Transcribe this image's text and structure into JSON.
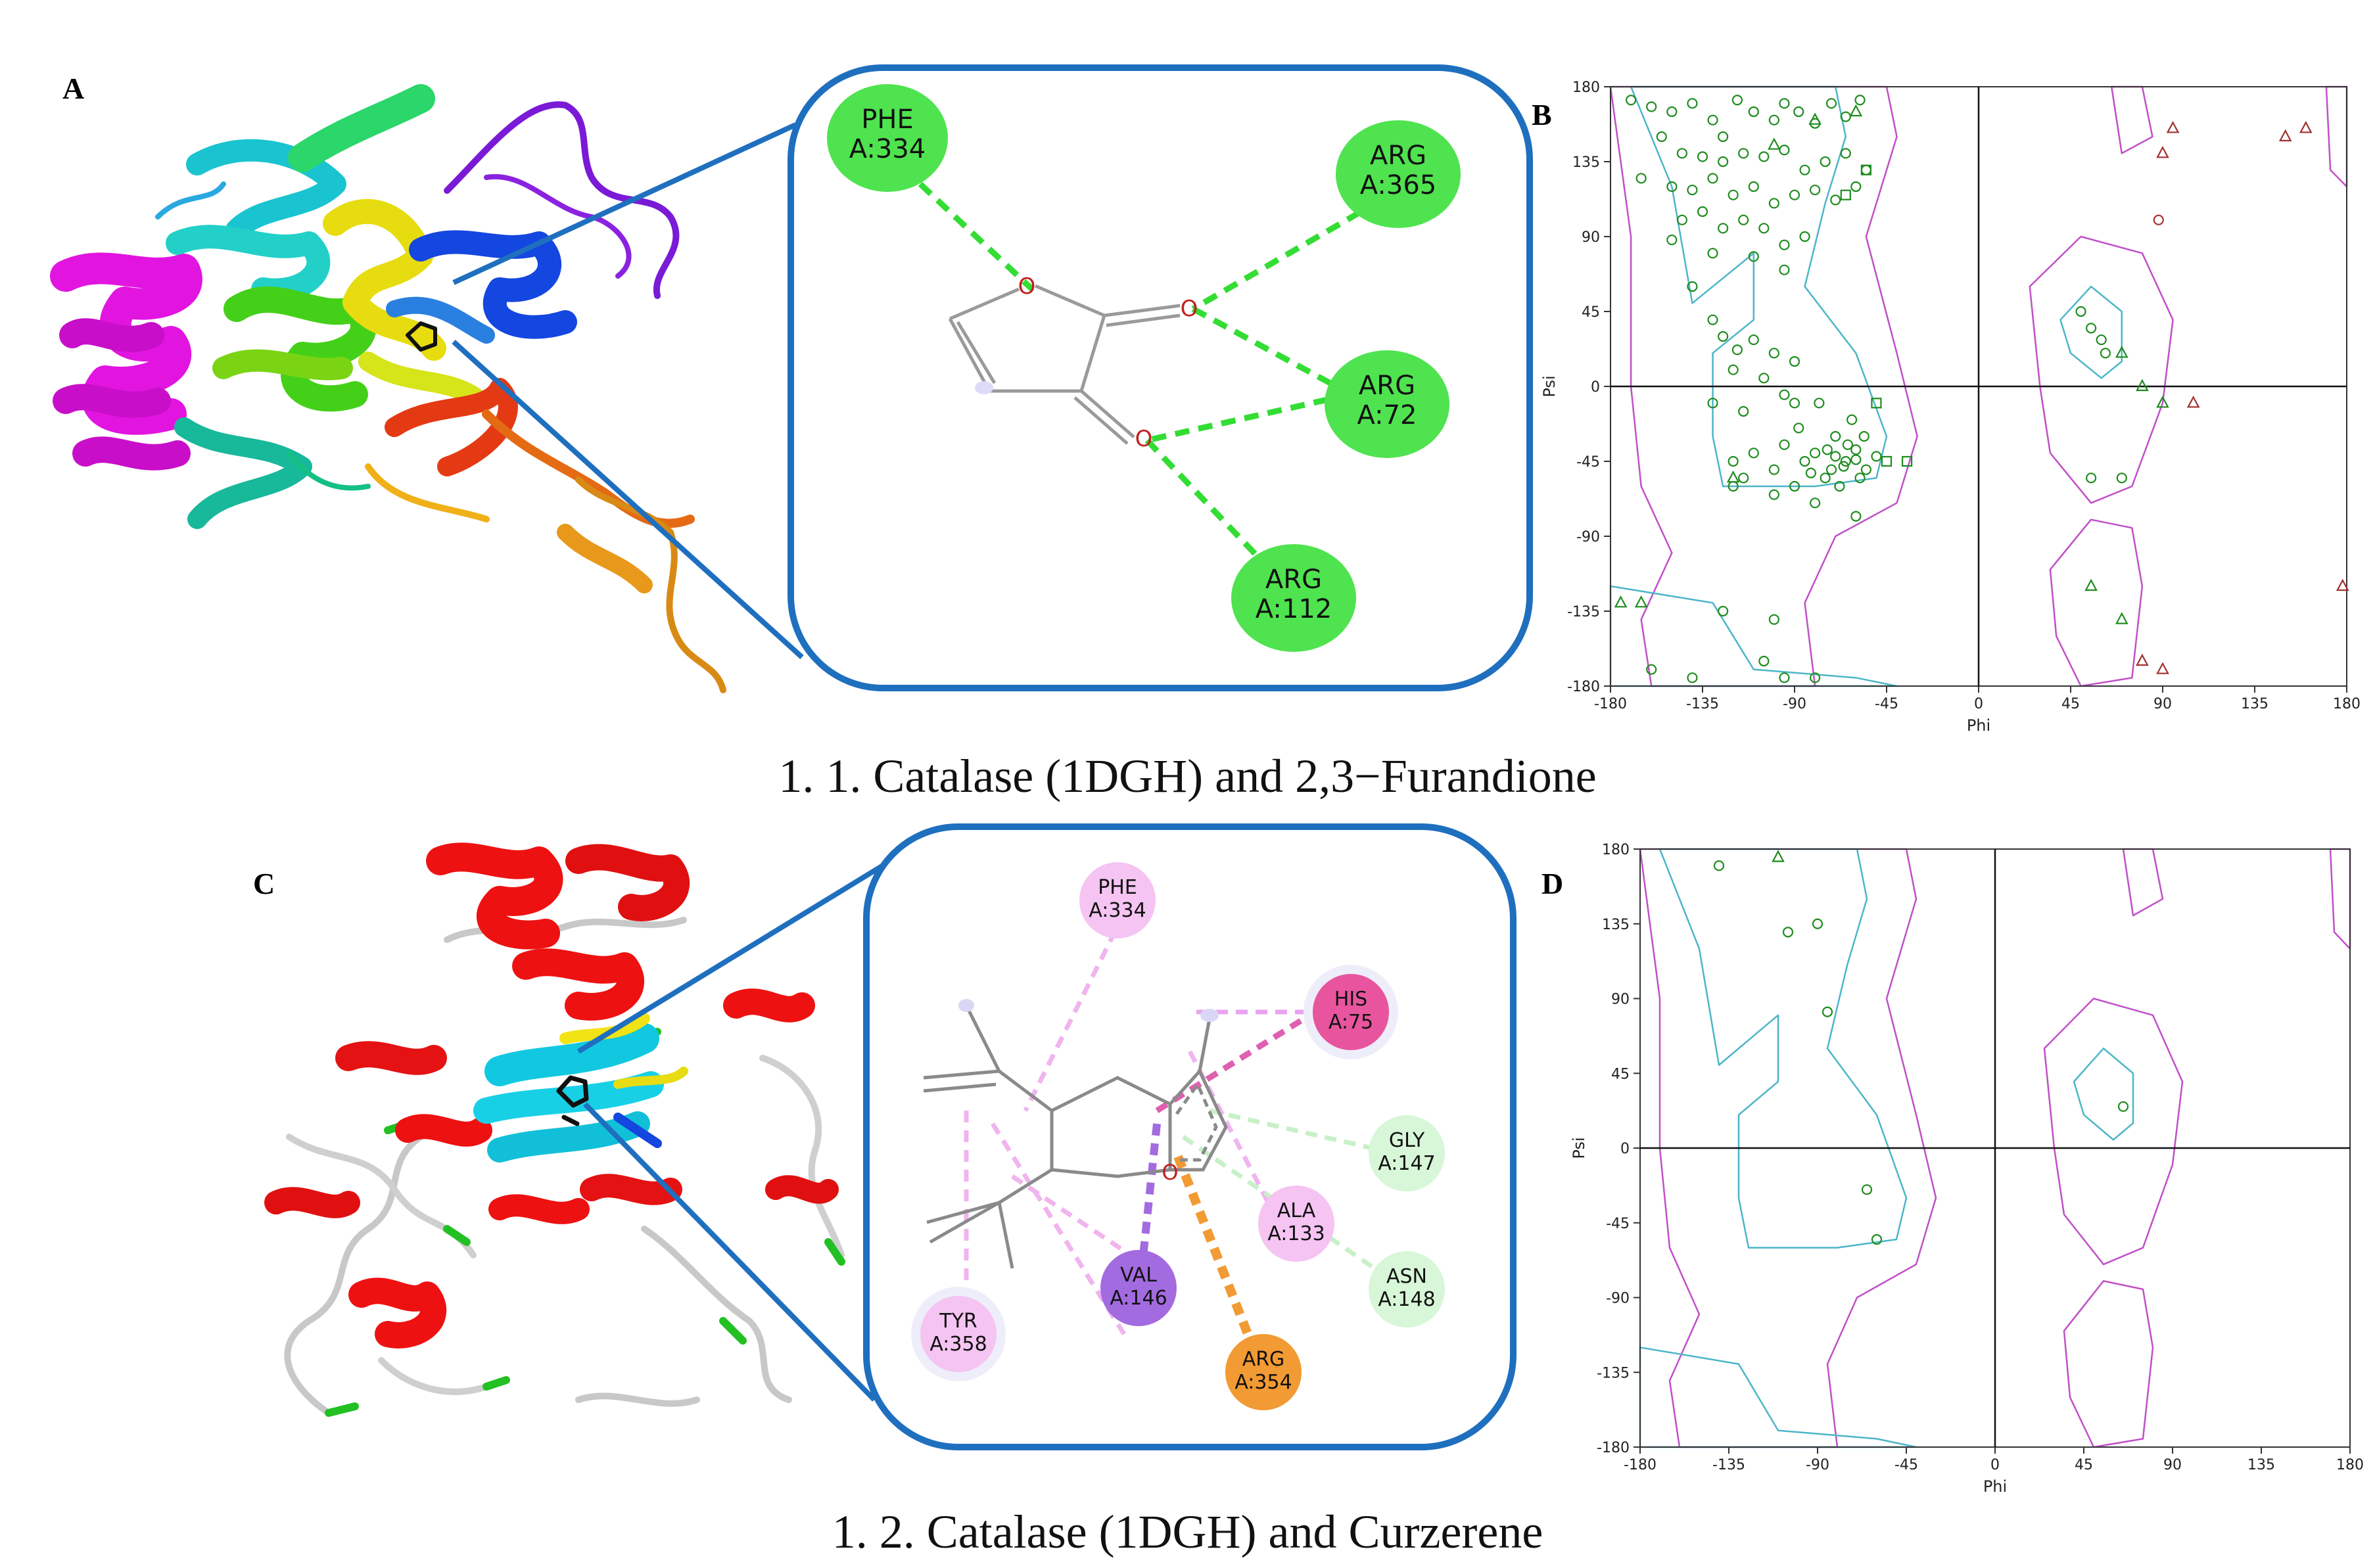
{
  "figure": {
    "row1": {
      "panel_a_letter": "A",
      "panel_b_letter": "B",
      "caption": "1. 1. Catalase (1DGH) and 2,3−Furandione",
      "residues": [
        {
          "name": "PHE",
          "id": "A:334",
          "type": "h-bond"
        },
        {
          "name": "ARG",
          "id": "A:365",
          "type": "h-bond"
        },
        {
          "name": "ARG",
          "id": "A:72",
          "type": "h-bond"
        },
        {
          "name": "ARG",
          "id": "A:112",
          "type": "h-bond"
        }
      ],
      "ligand_atoms": [
        "O",
        "O",
        "O"
      ]
    },
    "row2": {
      "panel_c_letter": "C",
      "panel_d_letter": "D",
      "caption": "1. 2. Catalase (1DGH) and Curzerene",
      "residues": [
        {
          "name": "PHE",
          "id": "A:334",
          "type": "pi-alkyl"
        },
        {
          "name": "HIS",
          "id": "A:75",
          "type": "pi-pi"
        },
        {
          "name": "GLY",
          "id": "A:147",
          "type": "carbon-h"
        },
        {
          "name": "ALA",
          "id": "A:133",
          "type": "pi-alkyl"
        },
        {
          "name": "ASN",
          "id": "A:148",
          "type": "carbon-h"
        },
        {
          "name": "VAL",
          "id": "A:146",
          "type": "pi-sigma"
        },
        {
          "name": "ARG",
          "id": "A:354",
          "type": "pi-cation"
        },
        {
          "name": "TYR",
          "id": "A:358",
          "type": "pi-alkyl"
        }
      ],
      "ligand_atoms": [
        "O"
      ]
    }
  },
  "colors": {
    "hbond_green": "#33dd33",
    "pi_alkyl": "#f5c4f2",
    "pi_pi": "#e8559e",
    "carbon_h": "#d8f6d8",
    "pi_sigma": "#a36be0",
    "pi_cation": "#f29a33",
    "panel_border": "#1f6fbf",
    "plot_green": "#1e8c1e",
    "plot_red": "#a03030",
    "contour_cyan": "#4cb6c8",
    "contour_magenta": "#c050c8"
  },
  "chart_data": [
    {
      "type": "scatter",
      "panel": "B",
      "title": "",
      "xlabel": "Phi",
      "ylabel": "Psi",
      "xlim": [
        -180,
        180
      ],
      "ylim": [
        -180,
        180
      ],
      "xticks": [
        -180,
        -135,
        -90,
        -45,
        0,
        45,
        90,
        135,
        180
      ],
      "yticks": [
        180,
        135,
        90,
        45,
        0,
        -45,
        -90,
        -135,
        -180
      ],
      "grid": false,
      "series": [
        {
          "marker": "circle",
          "color": "#1e8c1e",
          "points": [
            [
              -170,
              172
            ],
            [
              -160,
              168
            ],
            [
              -150,
              165
            ],
            [
              -140,
              170
            ],
            [
              -130,
              160
            ],
            [
              -125,
              150
            ],
            [
              -118,
              172
            ],
            [
              -110,
              165
            ],
            [
              -100,
              160
            ],
            [
              -95,
              170
            ],
            [
              -88,
              165
            ],
            [
              -80,
              158
            ],
            [
              -72,
              170
            ],
            [
              -65,
              162
            ],
            [
              -58,
              172
            ],
            [
              -155,
              150
            ],
            [
              -145,
              140
            ],
            [
              -135,
              138
            ],
            [
              -125,
              135
            ],
            [
              -115,
              140
            ],
            [
              -105,
              138
            ],
            [
              -95,
              142
            ],
            [
              -85,
              130
            ],
            [
              -75,
              135
            ],
            [
              -65,
              140
            ],
            [
              -55,
              130
            ],
            [
              -165,
              125
            ],
            [
              -150,
              120
            ],
            [
              -140,
              118
            ],
            [
              -130,
              125
            ],
            [
              -120,
              115
            ],
            [
              -110,
              120
            ],
            [
              -100,
              110
            ],
            [
              -90,
              115
            ],
            [
              -80,
              118
            ],
            [
              -70,
              112
            ],
            [
              -60,
              120
            ],
            [
              -145,
              100
            ],
            [
              -135,
              105
            ],
            [
              -125,
              95
            ],
            [
              -115,
              100
            ],
            [
              -105,
              95
            ],
            [
              -95,
              85
            ],
            [
              -85,
              90
            ],
            [
              -150,
              88
            ],
            [
              -130,
              80
            ],
            [
              -110,
              78
            ],
            [
              -95,
              70
            ],
            [
              -140,
              60
            ],
            [
              -130,
              40
            ],
            [
              -125,
              30
            ],
            [
              -118,
              22
            ],
            [
              -110,
              28
            ],
            [
              -100,
              20
            ],
            [
              -90,
              15
            ],
            [
              -120,
              10
            ],
            [
              -105,
              5
            ],
            [
              -95,
              -5
            ],
            [
              -130,
              -10
            ],
            [
              -115,
              -15
            ],
            [
              -120,
              -45
            ],
            [
              -115,
              -55
            ],
            [
              -110,
              -40
            ],
            [
              -100,
              -50
            ],
            [
              -95,
              -35
            ],
            [
              -90,
              -60
            ],
            [
              -85,
              -45
            ],
            [
              -80,
              -40
            ],
            [
              -75,
              -55
            ],
            [
              -70,
              -30
            ],
            [
              -65,
              -45
            ],
            [
              -60,
              -38
            ],
            [
              -55,
              -50
            ],
            [
              -50,
              -42
            ],
            [
              -62,
              -20
            ],
            [
              -78,
              -10
            ],
            [
              -88,
              -25
            ],
            [
              -72,
              -50
            ],
            [
              -68,
              -60
            ],
            [
              -58,
              -55
            ],
            [
              -64,
              -35
            ],
            [
              -70,
              -42
            ],
            [
              -66,
              -48
            ],
            [
              -60,
              -44
            ],
            [
              -74,
              -38
            ],
            [
              -82,
              -52
            ],
            [
              -56,
              -30
            ],
            [
              -90,
              -10
            ],
            [
              -120,
              -60
            ],
            [
              -100,
              -65
            ],
            [
              -80,
              -70
            ],
            [
              -60,
              -78
            ],
            [
              -125,
              -135
            ],
            [
              -100,
              -140
            ],
            [
              -95,
              -175
            ],
            [
              -140,
              -175
            ],
            [
              -160,
              -170
            ],
            [
              -105,
              -165
            ],
            [
              -80,
              -175
            ],
            [
              50,
              45
            ],
            [
              55,
              35
            ],
            [
              60,
              28
            ],
            [
              62,
              20
            ],
            [
              55,
              -55
            ],
            [
              70,
              -55
            ]
          ]
        },
        {
          "marker": "square",
          "color": "#1e8c1e",
          "points": [
            [
              -55,
              130
            ],
            [
              -65,
              115
            ],
            [
              -50,
              -10
            ],
            [
              -45,
              -45
            ],
            [
              -35,
              -45
            ]
          ]
        },
        {
          "marker": "triangle",
          "color": "#1e8c1e",
          "points": [
            [
              -100,
              145
            ],
            [
              -80,
              160
            ],
            [
              -60,
              165
            ],
            [
              -175,
              -130
            ],
            [
              -165,
              -130
            ],
            [
              -120,
              -55
            ],
            [
              70,
              20
            ],
            [
              80,
              0
            ],
            [
              90,
              -10
            ],
            [
              55,
              -120
            ],
            [
              70,
              -140
            ]
          ]
        },
        {
          "marker": "triangle",
          "color": "#a03030",
          "points": [
            [
              90,
              140
            ],
            [
              95,
              155
            ],
            [
              105,
              -10
            ],
            [
              150,
              150
            ],
            [
              160,
              155
            ],
            [
              178,
              -120
            ],
            [
              80,
              -165
            ],
            [
              90,
              -170
            ]
          ]
        },
        {
          "marker": "circle",
          "color": "#a03030",
          "points": [
            [
              88,
              100
            ]
          ]
        }
      ]
    },
    {
      "type": "scatter",
      "panel": "D",
      "title": "",
      "xlabel": "Phi",
      "ylabel": "Psi",
      "xlim": [
        -180,
        180
      ],
      "ylim": [
        -180,
        180
      ],
      "xticks": [
        -180,
        -135,
        -90,
        -45,
        0,
        45,
        90,
        135,
        180
      ],
      "yticks": [
        180,
        135,
        90,
        45,
        0,
        -45,
        -90,
        -135,
        -180
      ],
      "grid": false,
      "series": [
        {
          "marker": "circle",
          "color": "#1e8c1e",
          "points": [
            [
              -140,
              170
            ],
            [
              -105,
              130
            ],
            [
              -90,
              135
            ],
            [
              -85,
              82
            ],
            [
              -65,
              -25
            ],
            [
              -60,
              -55
            ],
            [
              65,
              25
            ]
          ]
        },
        {
          "marker": "triangle",
          "color": "#1e8c1e",
          "points": [
            [
              -110,
              175
            ]
          ]
        }
      ]
    }
  ]
}
